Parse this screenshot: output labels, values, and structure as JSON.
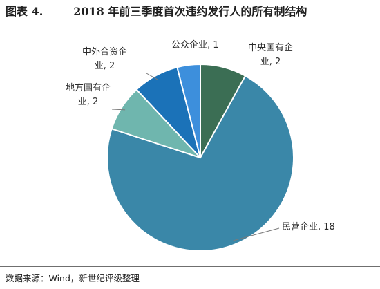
{
  "figure": {
    "number": "图表 4.",
    "title": "2018 年前三季度首次违约发行人的所有制结构"
  },
  "source": "数据来源：Wind，新世纪评级整理",
  "chart_data": {
    "type": "pie",
    "title": "",
    "slices": [
      {
        "label_line1": "中央国有企",
        "label_line2": "业, 2",
        "name": "中央国有企业",
        "value": 2,
        "color": "#3b6e54"
      },
      {
        "label_line1": "民营企业, 18",
        "label_line2": "",
        "name": "民营企业",
        "value": 18,
        "color": "#3a87a8"
      },
      {
        "label_line1": "地方国有企",
        "label_line2": "业, 2",
        "name": "地方国有企业",
        "value": 2,
        "color": "#6fb6ae"
      },
      {
        "label_line1": "中外合资企",
        "label_line2": "业, 2",
        "name": "中外合资企业",
        "value": 2,
        "color": "#1b72b8"
      },
      {
        "label_line1": "公众企业, 1",
        "label_line2": "",
        "name": "公众企业",
        "value": 1,
        "color": "#3d8fdc"
      }
    ]
  }
}
